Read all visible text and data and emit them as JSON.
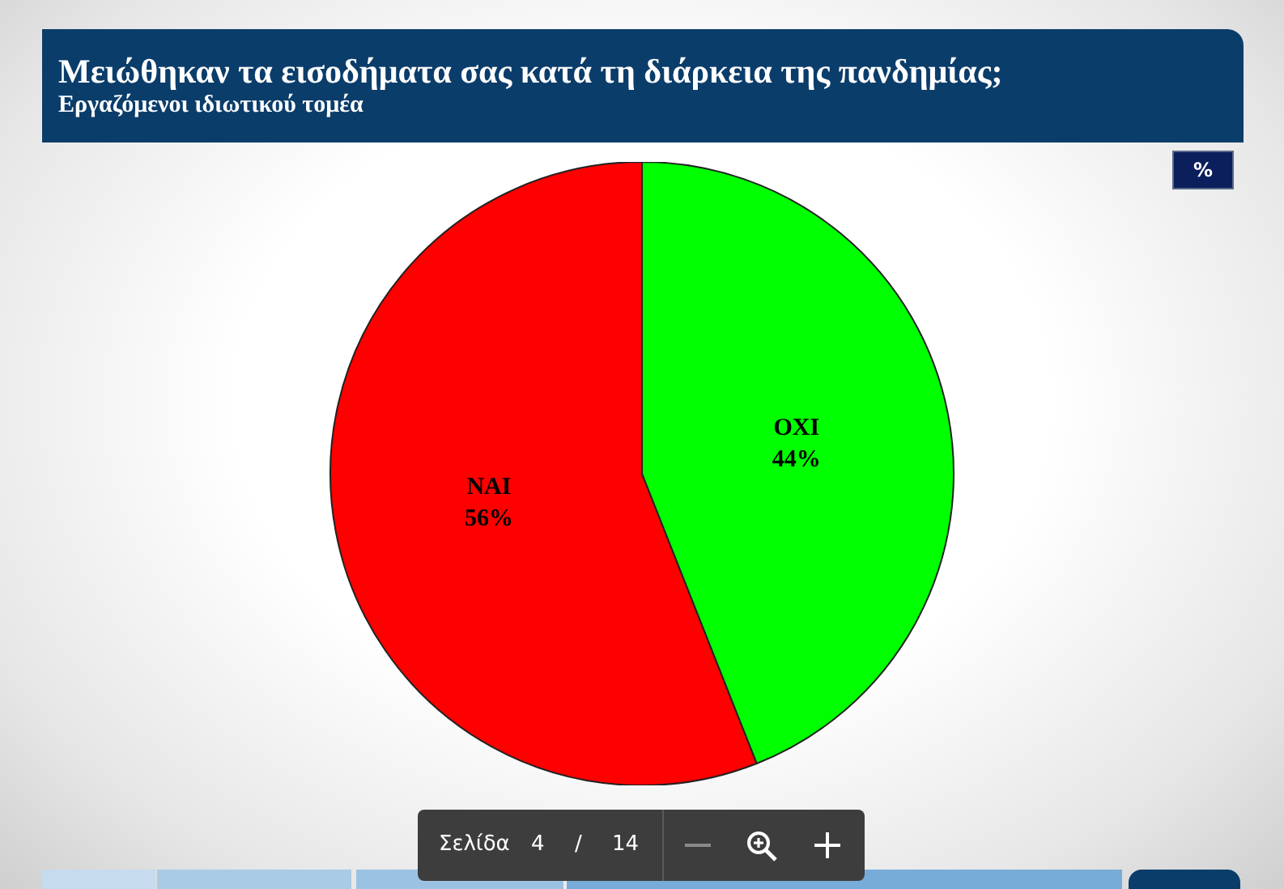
{
  "chart_data": {
    "type": "pie",
    "title": "Μειώθηκαν τα εισοδήματα σας κατά τη διάρκεια της πανδημίας;",
    "subtitle": "Εργαζόμενοι ιδιωτικού τομέα",
    "categories": [
      "NAI",
      "OXI"
    ],
    "values": [
      56,
      44
    ],
    "value_labels": [
      "56%",
      "44%"
    ],
    "colors": [
      "#ff0000",
      "#00ff00"
    ],
    "legend": false,
    "annotations": [
      "%",
      "Σελίδα",
      "4",
      "/",
      "14"
    ]
  }
}
